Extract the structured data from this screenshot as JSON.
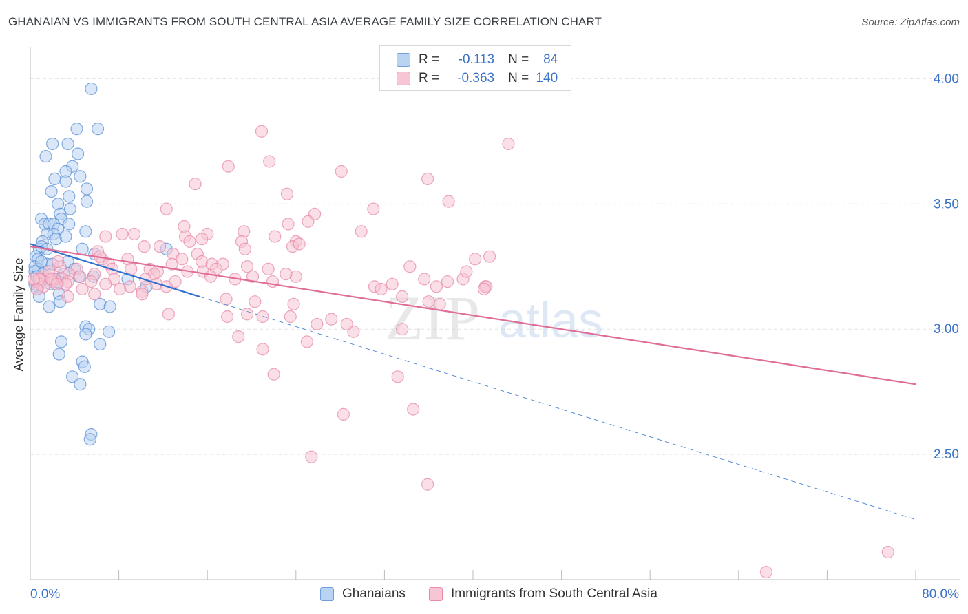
{
  "title": "GHANAIAN VS IMMIGRANTS FROM SOUTH CENTRAL ASIA AVERAGE FAMILY SIZE CORRELATION CHART",
  "source": "Source: ZipAtlas.com",
  "watermark": {
    "zip": "ZIP",
    "atlas": "atlas"
  },
  "legend": {
    "r_label": "R =",
    "n_label": "N =",
    "series": [
      {
        "name": "Ghanaians",
        "r": "-0.113",
        "n": "84",
        "color": "#5b8fd6"
      },
      {
        "name": "Immigrants from South Central Asia",
        "r": "-0.363",
        "n": "140",
        "color": "#e58aa8"
      }
    ]
  },
  "chart_data": {
    "type": "scatter",
    "title": "GHANAIAN VS IMMIGRANTS FROM SOUTH CENTRAL ASIA AVERAGE FAMILY SIZE CORRELATION CHART",
    "xlabel": "",
    "ylabel": "Average Family Size",
    "xlim": [
      0,
      80
    ],
    "ylim": [
      2.0,
      4.1
    ],
    "x_tick_labels": [
      "0.0%",
      "80.0%"
    ],
    "y_ticks": [
      2.5,
      3.0,
      3.5,
      4.0
    ],
    "y_tick_labels": [
      "2.50",
      "3.00",
      "3.50",
      "4.00"
    ],
    "grid": true,
    "series": [
      {
        "name": "Ghanaians",
        "color": "#5b8fd6",
        "fill": "#b9d3f3",
        "points": [
          [
            5.5,
            3.96
          ],
          [
            4.2,
            3.8
          ],
          [
            6.1,
            3.8
          ],
          [
            2.0,
            3.74
          ],
          [
            3.4,
            3.74
          ],
          [
            1.4,
            3.69
          ],
          [
            4.3,
            3.7
          ],
          [
            3.8,
            3.65
          ],
          [
            3.2,
            3.63
          ],
          [
            2.2,
            3.6
          ],
          [
            3.2,
            3.59
          ],
          [
            4.5,
            3.61
          ],
          [
            1.9,
            3.55
          ],
          [
            5.1,
            3.56
          ],
          [
            3.5,
            3.53
          ],
          [
            2.5,
            3.5
          ],
          [
            5.1,
            3.51
          ],
          [
            3.6,
            3.48
          ],
          [
            2.7,
            3.46
          ],
          [
            1.0,
            3.44
          ],
          [
            2.8,
            3.44
          ],
          [
            1.3,
            3.42
          ],
          [
            1.7,
            3.42
          ],
          [
            2.1,
            3.42
          ],
          [
            3.5,
            3.42
          ],
          [
            2.5,
            3.4
          ],
          [
            1.5,
            3.38
          ],
          [
            2.1,
            3.38
          ],
          [
            5.0,
            3.39
          ],
          [
            1.1,
            3.35
          ],
          [
            2.3,
            3.36
          ],
          [
            3.2,
            3.37
          ],
          [
            0.8,
            3.32
          ],
          [
            1.0,
            3.33
          ],
          [
            1.5,
            3.32
          ],
          [
            4.7,
            3.32
          ],
          [
            5.8,
            3.3
          ],
          [
            0.5,
            3.29
          ],
          [
            0.7,
            3.28
          ],
          [
            1.5,
            3.26
          ],
          [
            3.4,
            3.27
          ],
          [
            0.4,
            3.25
          ],
          [
            0.7,
            3.24
          ],
          [
            0.4,
            3.23
          ],
          [
            1.1,
            3.22
          ],
          [
            4.0,
            3.24
          ],
          [
            0.5,
            3.21
          ],
          [
            0.8,
            3.2
          ],
          [
            1.2,
            3.2
          ],
          [
            2.2,
            3.2
          ],
          [
            4.4,
            3.21
          ],
          [
            5.7,
            3.21
          ],
          [
            0.4,
            3.18
          ],
          [
            0.7,
            3.17
          ],
          [
            0.6,
            3.16
          ],
          [
            2.6,
            3.14
          ],
          [
            0.8,
            3.13
          ],
          [
            2.7,
            3.11
          ],
          [
            6.3,
            3.1
          ],
          [
            7.2,
            3.09
          ],
          [
            1.7,
            3.09
          ],
          [
            5.0,
            3.01
          ],
          [
            5.3,
            3.0
          ],
          [
            7.1,
            2.99
          ],
          [
            5.0,
            2.98
          ],
          [
            2.8,
            2.95
          ],
          [
            6.3,
            2.94
          ],
          [
            2.6,
            2.9
          ],
          [
            4.7,
            2.87
          ],
          [
            4.9,
            2.85
          ],
          [
            3.8,
            2.81
          ],
          [
            4.5,
            2.78
          ],
          [
            5.5,
            2.58
          ],
          [
            5.4,
            2.56
          ],
          [
            12.3,
            3.32
          ],
          [
            10.5,
            3.17
          ],
          [
            8.8,
            3.2
          ],
          [
            1.0,
            3.27
          ],
          [
            2.0,
            3.26
          ],
          [
            3.0,
            3.22
          ],
          [
            0.9,
            3.19
          ],
          [
            1.8,
            3.18
          ],
          [
            0.6,
            3.21
          ],
          [
            2.5,
            3.19
          ]
        ],
        "trend_solid": [
          [
            0,
            3.34
          ],
          [
            15.3,
            3.13
          ]
        ],
        "trend_dashed": [
          [
            15.3,
            3.13
          ],
          [
            80,
            2.24
          ]
        ]
      },
      {
        "name": "Immigrants from South Central Asia",
        "color": "#e58aa8",
        "fill": "#f7c5d4",
        "points": [
          [
            20.9,
            3.79
          ],
          [
            43.2,
            3.74
          ],
          [
            21.6,
            3.67
          ],
          [
            17.9,
            3.65
          ],
          [
            28.1,
            3.63
          ],
          [
            35.9,
            3.6
          ],
          [
            14.9,
            3.58
          ],
          [
            23.2,
            3.54
          ],
          [
            37.8,
            3.51
          ],
          [
            31.0,
            3.48
          ],
          [
            12.3,
            3.48
          ],
          [
            25.7,
            3.46
          ],
          [
            23.3,
            3.42
          ],
          [
            25.1,
            3.43
          ],
          [
            13.9,
            3.41
          ],
          [
            29.9,
            3.39
          ],
          [
            6.8,
            3.37
          ],
          [
            8.3,
            3.38
          ],
          [
            9.4,
            3.38
          ],
          [
            14.0,
            3.37
          ],
          [
            16.0,
            3.38
          ],
          [
            19.3,
            3.39
          ],
          [
            22.1,
            3.37
          ],
          [
            14.4,
            3.35
          ],
          [
            15.5,
            3.36
          ],
          [
            19.1,
            3.35
          ],
          [
            24.0,
            3.35
          ],
          [
            10.3,
            3.33
          ],
          [
            11.7,
            3.33
          ],
          [
            23.7,
            3.33
          ],
          [
            24.3,
            3.34
          ],
          [
            19.4,
            3.32
          ],
          [
            6.1,
            3.31
          ],
          [
            12.9,
            3.3
          ],
          [
            15.1,
            3.3
          ],
          [
            6.5,
            3.28
          ],
          [
            8.8,
            3.28
          ],
          [
            13.7,
            3.28
          ],
          [
            15.5,
            3.27
          ],
          [
            12.8,
            3.26
          ],
          [
            7.1,
            3.26
          ],
          [
            16.4,
            3.26
          ],
          [
            17.4,
            3.26
          ],
          [
            19.6,
            3.25
          ],
          [
            21.5,
            3.24
          ],
          [
            7.4,
            3.24
          ],
          [
            4.2,
            3.24
          ],
          [
            9.1,
            3.24
          ],
          [
            10.8,
            3.24
          ],
          [
            11.5,
            3.23
          ],
          [
            15.6,
            3.23
          ],
          [
            16.8,
            3.24
          ],
          [
            11.2,
            3.22
          ],
          [
            14.2,
            3.23
          ],
          [
            3.5,
            3.22
          ],
          [
            5.8,
            3.22
          ],
          [
            20.1,
            3.21
          ],
          [
            2.9,
            3.2
          ],
          [
            1.1,
            3.21
          ],
          [
            1.5,
            3.21
          ],
          [
            4.5,
            3.21
          ],
          [
            7.6,
            3.2
          ],
          [
            10.4,
            3.2
          ],
          [
            16.3,
            3.21
          ],
          [
            18.5,
            3.2
          ],
          [
            2.2,
            3.2
          ],
          [
            3.4,
            3.19
          ],
          [
            13.1,
            3.19
          ],
          [
            21.9,
            3.19
          ],
          [
            1.0,
            3.2
          ],
          [
            0.5,
            3.19
          ],
          [
            2.0,
            3.19
          ],
          [
            3.2,
            3.18
          ],
          [
            6.8,
            3.18
          ],
          [
            9.0,
            3.17
          ],
          [
            11.4,
            3.18
          ],
          [
            12.3,
            3.17
          ],
          [
            8.1,
            3.16
          ],
          [
            10.1,
            3.15
          ],
          [
            5.8,
            3.14
          ],
          [
            10.1,
            3.14
          ],
          [
            3.4,
            3.13
          ],
          [
            17.7,
            3.12
          ],
          [
            20.3,
            3.11
          ],
          [
            23.8,
            3.1
          ],
          [
            12.5,
            3.06
          ],
          [
            17.8,
            3.05
          ],
          [
            19.6,
            3.06
          ],
          [
            21.0,
            3.05
          ],
          [
            23.5,
            3.05
          ],
          [
            27.2,
            3.04
          ],
          [
            25.9,
            3.02
          ],
          [
            29.2,
            2.99
          ],
          [
            28.6,
            3.02
          ],
          [
            33.6,
            3.0
          ],
          [
            18.8,
            2.97
          ],
          [
            25.0,
            2.95
          ],
          [
            21.0,
            2.92
          ],
          [
            22.0,
            2.82
          ],
          [
            33.2,
            2.81
          ],
          [
            28.3,
            2.66
          ],
          [
            34.6,
            2.68
          ],
          [
            25.4,
            2.49
          ],
          [
            35.9,
            2.38
          ],
          [
            77.5,
            2.11
          ],
          [
            66.5,
            2.03
          ],
          [
            34.3,
            3.25
          ],
          [
            35.6,
            3.2
          ],
          [
            37.7,
            3.19
          ],
          [
            36.7,
            3.17
          ],
          [
            36.0,
            3.11
          ],
          [
            37.0,
            3.1
          ],
          [
            32.7,
            3.18
          ],
          [
            33.6,
            3.13
          ],
          [
            39.1,
            3.2
          ],
          [
            41.1,
            3.17
          ],
          [
            41.2,
            3.17
          ],
          [
            39.4,
            3.23
          ],
          [
            41.0,
            3.16
          ],
          [
            41.5,
            3.29
          ],
          [
            40.2,
            3.28
          ],
          [
            31.1,
            3.17
          ],
          [
            31.7,
            3.16
          ],
          [
            24.0,
            3.21
          ],
          [
            23.1,
            3.22
          ],
          [
            2.7,
            3.25
          ],
          [
            4.7,
            3.16
          ],
          [
            0.9,
            3.18
          ],
          [
            1.7,
            3.23
          ],
          [
            1.2,
            3.17
          ],
          [
            0.8,
            3.2
          ],
          [
            1.9,
            3.2
          ],
          [
            2.5,
            3.27
          ],
          [
            5.5,
            3.19
          ],
          [
            6.3,
            3.29
          ],
          [
            0.6,
            3.16
          ],
          [
            0.3,
            3.2
          ],
          [
            2.4,
            3.18
          ]
        ],
        "trend_solid": [
          [
            0,
            3.33
          ],
          [
            80,
            2.78
          ]
        ]
      }
    ]
  }
}
